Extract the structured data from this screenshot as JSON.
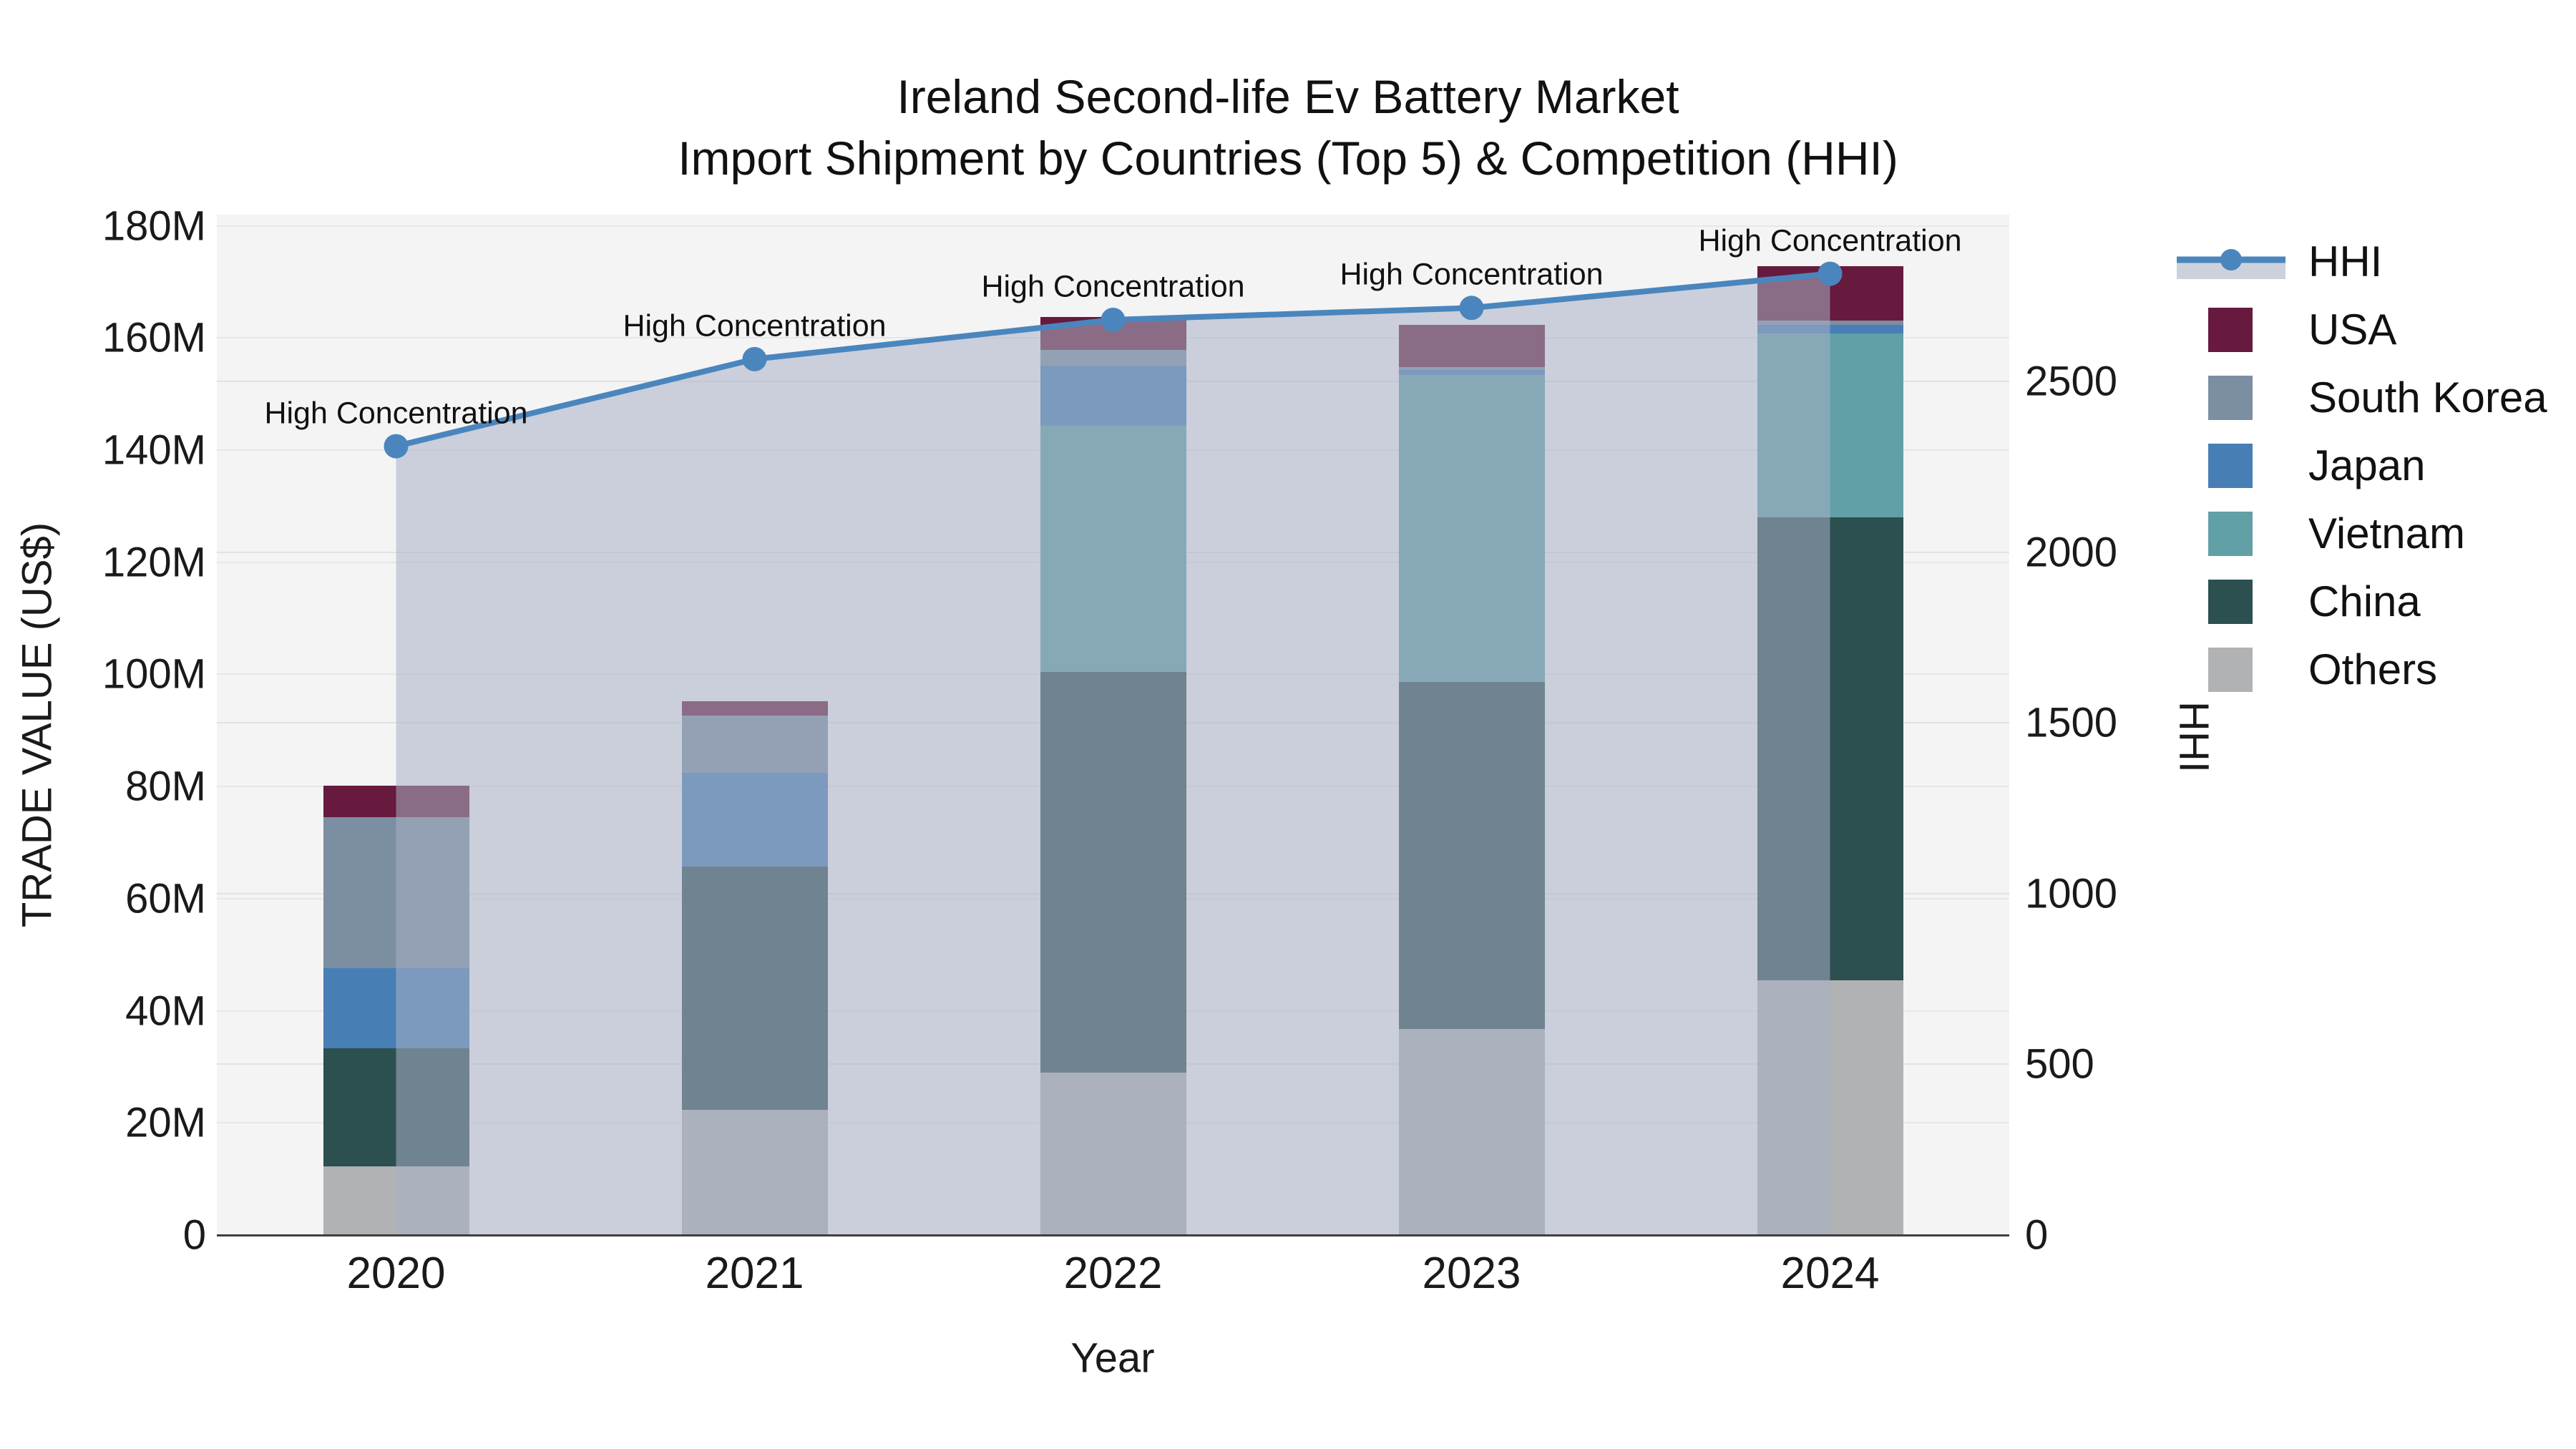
{
  "title": {
    "line1": "Ireland Second-life Ev Battery Market",
    "line2": "Import Shipment by Countries (Top 5) & Competition (HHI)"
  },
  "axes": {
    "left": {
      "label": "TRADE VALUE (US$)",
      "tick_labels": [
        "0",
        "20M",
        "40M",
        "60M",
        "80M",
        "100M",
        "120M",
        "140M",
        "160M",
        "180M"
      ],
      "tick_values": [
        0,
        20,
        40,
        60,
        80,
        100,
        120,
        140,
        160,
        180
      ],
      "max": 182
    },
    "right": {
      "label": "HHI",
      "tick_labels": [
        "0",
        "500",
        "1000",
        "1500",
        "2000",
        "2500"
      ],
      "tick_values": [
        0,
        500,
        1000,
        1500,
        2000,
        2500
      ],
      "max": 2988
    },
    "x": {
      "label": "Year"
    }
  },
  "legend": {
    "entries": [
      {
        "label": "HHI",
        "type": "line",
        "color": "#4a86bd",
        "band_color": "#ccd2dc"
      },
      {
        "label": "USA",
        "type": "square",
        "color": "#671a3d"
      },
      {
        "label": "South Korea",
        "type": "square",
        "color": "#7c8ea2"
      },
      {
        "label": "Japan",
        "type": "square",
        "color": "#477fb5"
      },
      {
        "label": "Vietnam",
        "type": "square",
        "color": "#61a0a6"
      },
      {
        "label": "China",
        "type": "square",
        "color": "#2c4f50"
      },
      {
        "label": "Others",
        "type": "square",
        "color": "#b0b2b3"
      }
    ]
  },
  "chart_data": {
    "type": "combo: stacked-bar (left axis, trade value US$ millions) + line-with-area (right axis, HHI)",
    "title": "Ireland Second-life Ev Battery Market — Import Shipment by Countries (Top 5) & Competition (HHI)",
    "categories": [
      "2020",
      "2021",
      "2022",
      "2023",
      "2024"
    ],
    "bar_unit": "million US$",
    "bar_series": [
      {
        "name": "Others",
        "color": "#b0b2b3",
        "values": [
          12.2,
          22.3,
          29.0,
          36.7,
          45.4
        ]
      },
      {
        "name": "China",
        "color": "#2c4f50",
        "values": [
          21.1,
          43.4,
          71.4,
          62.0,
          82.6
        ]
      },
      {
        "name": "Vietnam",
        "color": "#61a0a6",
        "values": [
          0,
          0,
          43.9,
          54.7,
          32.8
        ]
      },
      {
        "name": "Japan",
        "color": "#477fb5",
        "values": [
          14.3,
          16.7,
          10.8,
          0.9,
          1.5
        ]
      },
      {
        "name": "South Korea",
        "color": "#7c8ea2",
        "values": [
          27.0,
          10.2,
          2.8,
          0.5,
          0.8
        ]
      },
      {
        "name": "USA",
        "color": "#671a3d",
        "values": [
          5.5,
          2.6,
          5.9,
          7.5,
          9.7
        ]
      }
    ],
    "bar_totals": [
      80.1,
      95.2,
      163.8,
      162.3,
      172.8
    ],
    "line_series": {
      "name": "HHI",
      "color": "#4a86bd",
      "area_color": "rgba(167,177,196,0.55)",
      "values": [
        2310,
        2565,
        2680,
        2715,
        2815
      ],
      "point_annotation": "High Concentration"
    },
    "xlabel": "Year",
    "ylabel": "TRADE VALUE (US$)",
    "y2label": "HHI",
    "ylim": [
      0,
      182
    ],
    "y2lim": [
      0,
      2988
    ],
    "grid": "horizontal gridlines at 20M steps (left axis) and 500 steps (right axis)",
    "legend_position": "right, outside plot"
  }
}
